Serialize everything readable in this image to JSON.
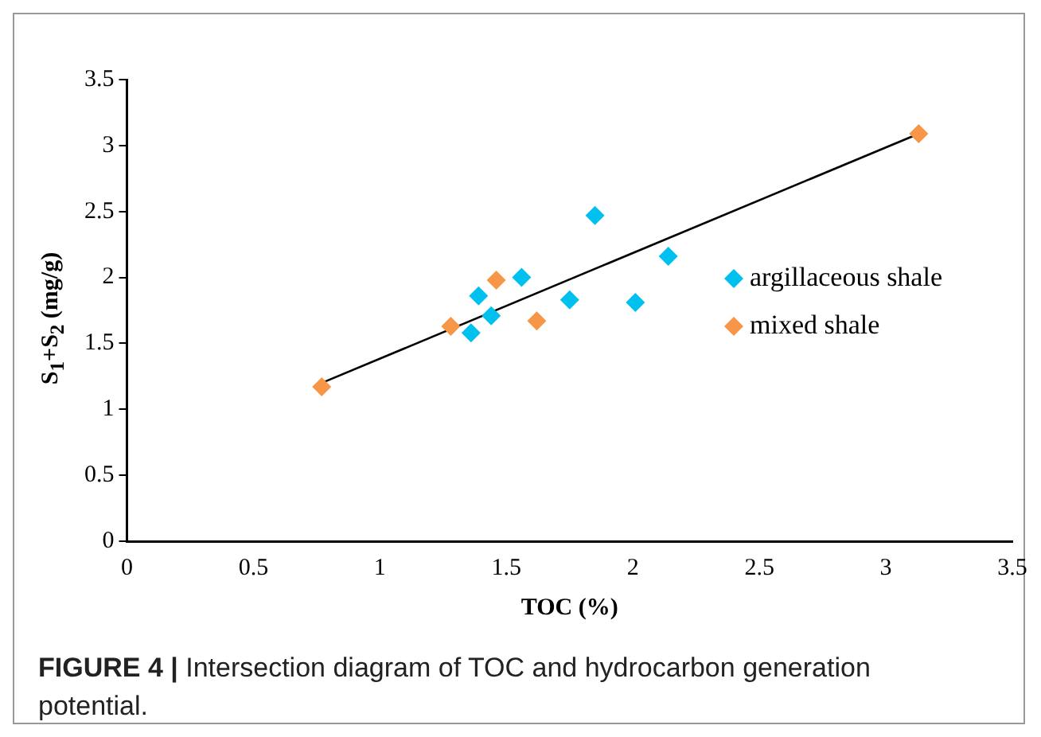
{
  "chart_data": {
    "type": "scatter",
    "xlabel": "TOC (%)",
    "ylabel": "S$_{1}$+S$_{2}$ (mg/g)",
    "marker": "diamond",
    "legend": "right",
    "grid": false,
    "xlim": [
      0,
      3.5
    ],
    "xticks": [
      0,
      0.5,
      1,
      1.5,
      2,
      2.5,
      3,
      3.5
    ],
    "ylim": [
      0,
      3.5
    ],
    "yticks": [
      0,
      0.5,
      1,
      1.5,
      2,
      2.5,
      3,
      3.5
    ],
    "series": [
      {
        "name": "argillaceous shale",
        "color": "#00c0f0",
        "x": [
          1.36,
          1.39,
          1.44,
          1.56,
          1.75,
          1.85,
          2.01,
          2.14
        ],
        "values": [
          1.58,
          1.86,
          1.71,
          2.0,
          1.83,
          2.47,
          1.81,
          2.16
        ]
      },
      {
        "name": "mixed shale",
        "color": "#f79646",
        "x": [
          0.77,
          1.28,
          1.46,
          1.62,
          3.13
        ],
        "values": [
          1.17,
          1.63,
          1.98,
          1.67,
          3.09
        ]
      },
      {
        "type": "line",
        "color": "#000000",
        "marker": "none",
        "x": [
          0.77,
          3.13
        ],
        "values": [
          1.2,
          3.09
        ]
      }
    ],
    "annotations": [
      "FIGURE 4 | Intersection diagram of TOC and hydrocarbon generation potential."
    ]
  }
}
